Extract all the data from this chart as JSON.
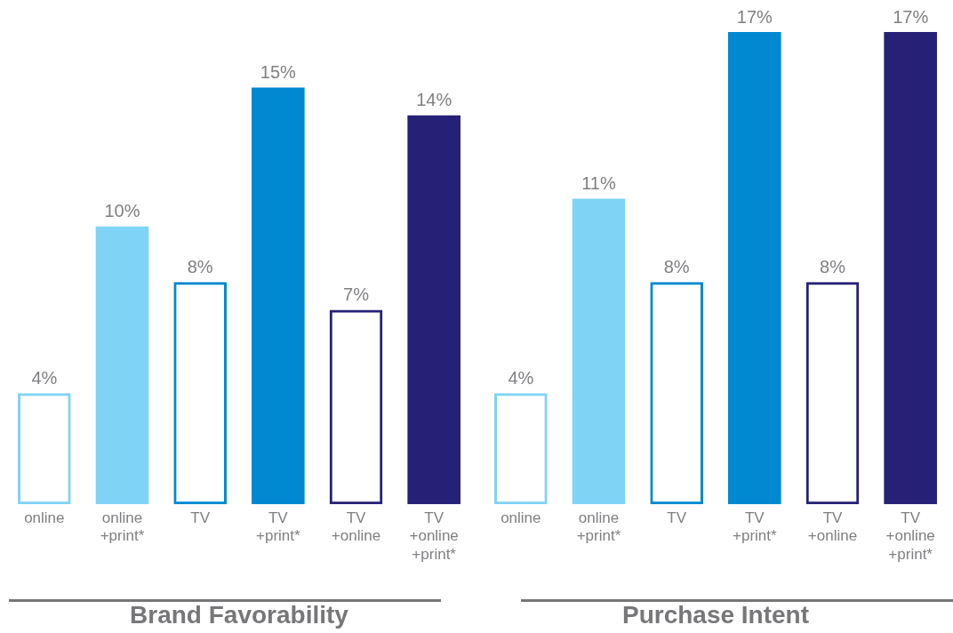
{
  "chart_data": [
    {
      "type": "bar",
      "title": "Brand Favorability",
      "categories": [
        "online",
        "online\n+print*",
        "TV",
        "TV\n+print*",
        "TV\n+online",
        "TV\n+online\n+print*"
      ],
      "tick_labels": "x",
      "grid": false,
      "legend": false,
      "series": [
        {
          "values": [
            4,
            null,
            8,
            null,
            7,
            null
          ],
          "value_labels": [
            "4%",
            null,
            "8%",
            null,
            "7%",
            null
          ],
          "colors": [
            "#7fd3f5",
            null,
            "#0088d1",
            null,
            "#262077",
            null
          ]
        },
        {
          "values": [
            null,
            10,
            null,
            15,
            null,
            14
          ],
          "value_labels": [
            null,
            "10%",
            null,
            "15%",
            null,
            "14%"
          ],
          "colors": [
            null,
            "#7fd3f5",
            null,
            "#0088d1",
            null,
            "#262077"
          ]
        }
      ]
    },
    {
      "type": "bar",
      "title": "Purchase Intent",
      "categories": [
        "online",
        "online\n+print*",
        "TV",
        "TV\n+print*",
        "TV\n+online",
        "TV\n+online\n+print*"
      ],
      "tick_labels": "x",
      "grid": false,
      "legend": false,
      "series": [
        {
          "values": [
            4,
            null,
            8,
            null,
            8,
            null
          ],
          "value_labels": [
            "4%",
            null,
            "8%",
            null,
            "8%",
            null
          ],
          "colors": [
            "#7fd3f5",
            null,
            "#0088d1",
            null,
            "#262077",
            null
          ]
        },
        {
          "values": [
            null,
            11,
            null,
            17,
            null,
            17
          ],
          "value_labels": [
            null,
            "11%",
            null,
            "17%",
            null,
            "17%"
          ],
          "colors": [
            null,
            "#7fd3f5",
            null,
            "#0088d1",
            null,
            "#262077"
          ]
        }
      ]
    }
  ]
}
